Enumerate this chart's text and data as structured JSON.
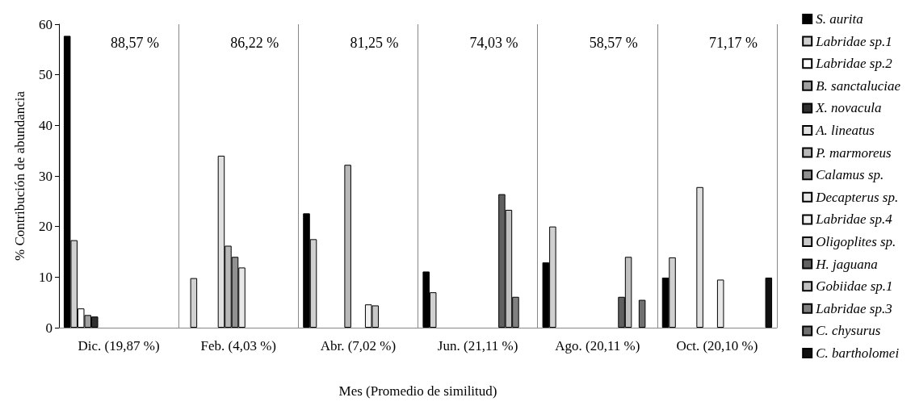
{
  "chart_data": {
    "type": "bar",
    "xlabel": "Mes (Promedio de similitud)",
    "ylabel": "% Contribución de abundancia",
    "categories": [
      "Dic. (19,87 %)",
      "Feb. (4,03 %)",
      "Abr. (7,02 %)",
      "Jun. (21,11 %)",
      "Ago. (20,11 %)",
      "Oct. (20,10 %)"
    ],
    "ylim": [
      0,
      60
    ],
    "yticks": [
      0,
      10,
      20,
      30,
      40,
      50,
      60
    ],
    "grid": "x",
    "legend": "right",
    "annotations": [
      "88,57 %",
      "86,22 %",
      "81,25 %",
      "74,03 %",
      "58,57 %",
      "71,17 %"
    ],
    "series": [
      {
        "name": "S. aurita",
        "color": "#000000",
        "values": [
          57.7,
          null,
          22.6,
          11.1,
          12.9,
          9.9
        ]
      },
      {
        "name": "Labridae sp.1",
        "color": "#d0d0d0",
        "values": [
          17.3,
          9.8,
          17.5,
          7.0,
          20.0,
          13.9
        ]
      },
      {
        "name": "Labridae sp.2",
        "color": "#ffffff",
        "values": [
          3.8,
          null,
          null,
          null,
          null,
          null
        ]
      },
      {
        "name": "B. sanctaluciae",
        "color": "#a0a0a0",
        "values": [
          2.5,
          null,
          null,
          null,
          null,
          null
        ]
      },
      {
        "name": "X. novacula",
        "color": "#303030",
        "values": [
          2.2,
          null,
          null,
          null,
          null,
          null
        ]
      },
      {
        "name": "A. lineatus",
        "color": "#e0e0e0",
        "values": [
          null,
          34.0,
          null,
          null,
          null,
          27.8
        ]
      },
      {
        "name": "P. marmoreus",
        "color": "#b8b8b8",
        "values": [
          null,
          16.2,
          32.2,
          null,
          null,
          null
        ]
      },
      {
        "name": "Calamus sp.",
        "color": "#909090",
        "values": [
          null,
          14.0,
          null,
          null,
          null,
          null
        ]
      },
      {
        "name": "Decapterus sp.",
        "color": "#e8e8e8",
        "values": [
          null,
          11.9,
          null,
          null,
          null,
          9.5
        ]
      },
      {
        "name": "Labridae sp.4",
        "color": "#f0f0f0",
        "values": [
          null,
          null,
          4.6,
          null,
          null,
          null
        ]
      },
      {
        "name": "Oligoplites sp.",
        "color": "#c8c8c8",
        "values": [
          null,
          null,
          4.4,
          null,
          null,
          null
        ]
      },
      {
        "name": "H. jaguana",
        "color": "#606060",
        "values": [
          null,
          null,
          null,
          26.4,
          6.1,
          null
        ]
      },
      {
        "name": "Gobiidae sp.1",
        "color": "#c0c0c0",
        "values": [
          null,
          null,
          null,
          23.3,
          14.0,
          null
        ]
      },
      {
        "name": "Labridae sp.3",
        "color": "#808080",
        "values": [
          null,
          null,
          null,
          6.1,
          null,
          null
        ]
      },
      {
        "name": "C. chysurus",
        "color": "#707070",
        "values": [
          null,
          null,
          null,
          null,
          5.5,
          null
        ]
      },
      {
        "name": "C. bartholomei",
        "color": "#101010",
        "values": [
          null,
          null,
          null,
          null,
          null,
          9.9
        ]
      }
    ]
  }
}
